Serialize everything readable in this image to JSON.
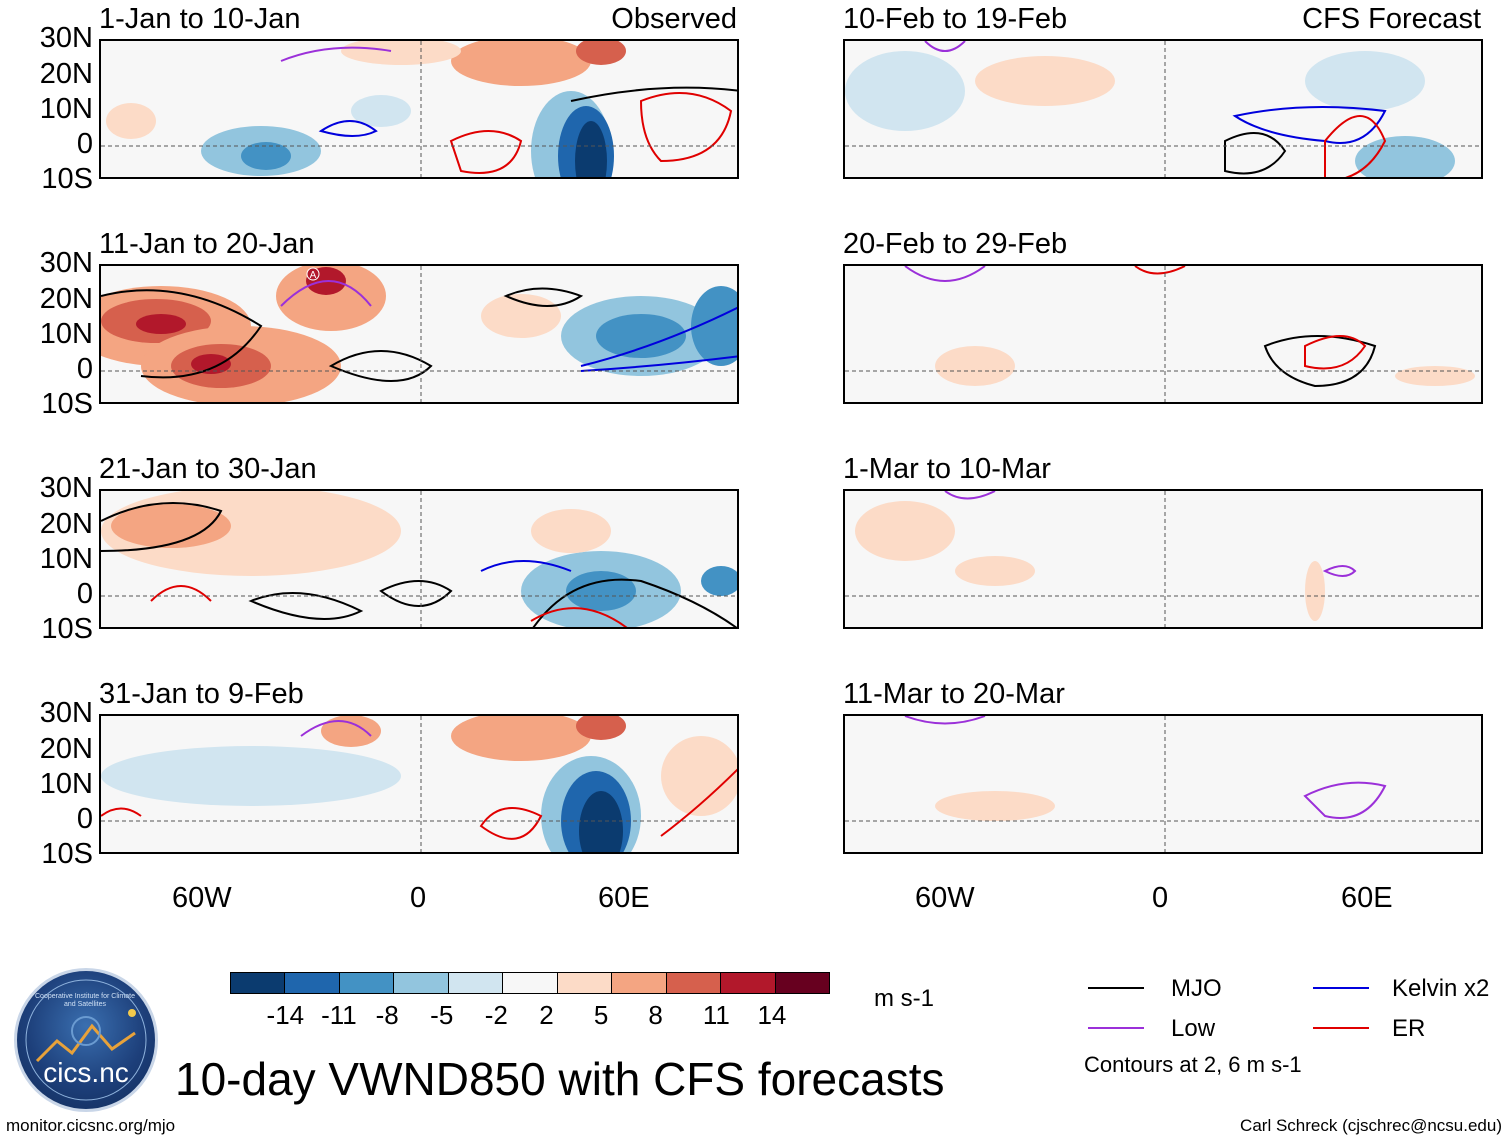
{
  "left_panels": [
    {
      "title": "1-Jan to 10-Jan",
      "source": "Observed"
    },
    {
      "title": "11-Jan to 20-Jan",
      "source": ""
    },
    {
      "title": "21-Jan to 30-Jan",
      "source": ""
    },
    {
      "title": "31-Jan to 9-Feb",
      "source": ""
    }
  ],
  "right_panels": [
    {
      "title": "10-Feb to 19-Feb",
      "source": "CFS Forecast"
    },
    {
      "title": "20-Feb to 29-Feb",
      "source": ""
    },
    {
      "title": "1-Mar to 10-Mar",
      "source": ""
    },
    {
      "title": "11-Mar to 20-Mar",
      "source": ""
    }
  ],
  "lat_labels": [
    "30N",
    "20N",
    "10N",
    "0",
    "10S"
  ],
  "lon_labels": [
    "60W",
    "0",
    "60E"
  ],
  "colorbar": {
    "colors": [
      "#0b3b6f",
      "#1f66ad",
      "#4392c4",
      "#92c5de",
      "#d1e5f0",
      "#f7f7f7",
      "#fcdbc7",
      "#f4a582",
      "#d6604d",
      "#b2182b",
      "#67001f"
    ],
    "ticks": [
      "-14",
      "-11",
      "-8",
      "-5",
      "-2",
      "2",
      "5",
      "8",
      "11",
      "14"
    ],
    "units": "m s-1"
  },
  "legend": [
    {
      "label": "MJO",
      "color": "#000000"
    },
    {
      "label": "Kelvin x2",
      "color": "#0000dd"
    },
    {
      "label": "Low",
      "color": "#9b30d9"
    },
    {
      "label": "ER",
      "color": "#e00000"
    }
  ],
  "contour_note": "Contours at 2, 6 m s-1",
  "main_title": "10-day VWND850 with CFS forecasts",
  "footer_left": "monitor.cicsnc.org/mjo",
  "footer_right": "Carl Schreck (cjschrec@ncsu.edu)",
  "logo": {
    "text": "cics.nc",
    "ring_text": "Cooperative Institute for Climate and Satellites"
  },
  "map_marker": "A"
}
